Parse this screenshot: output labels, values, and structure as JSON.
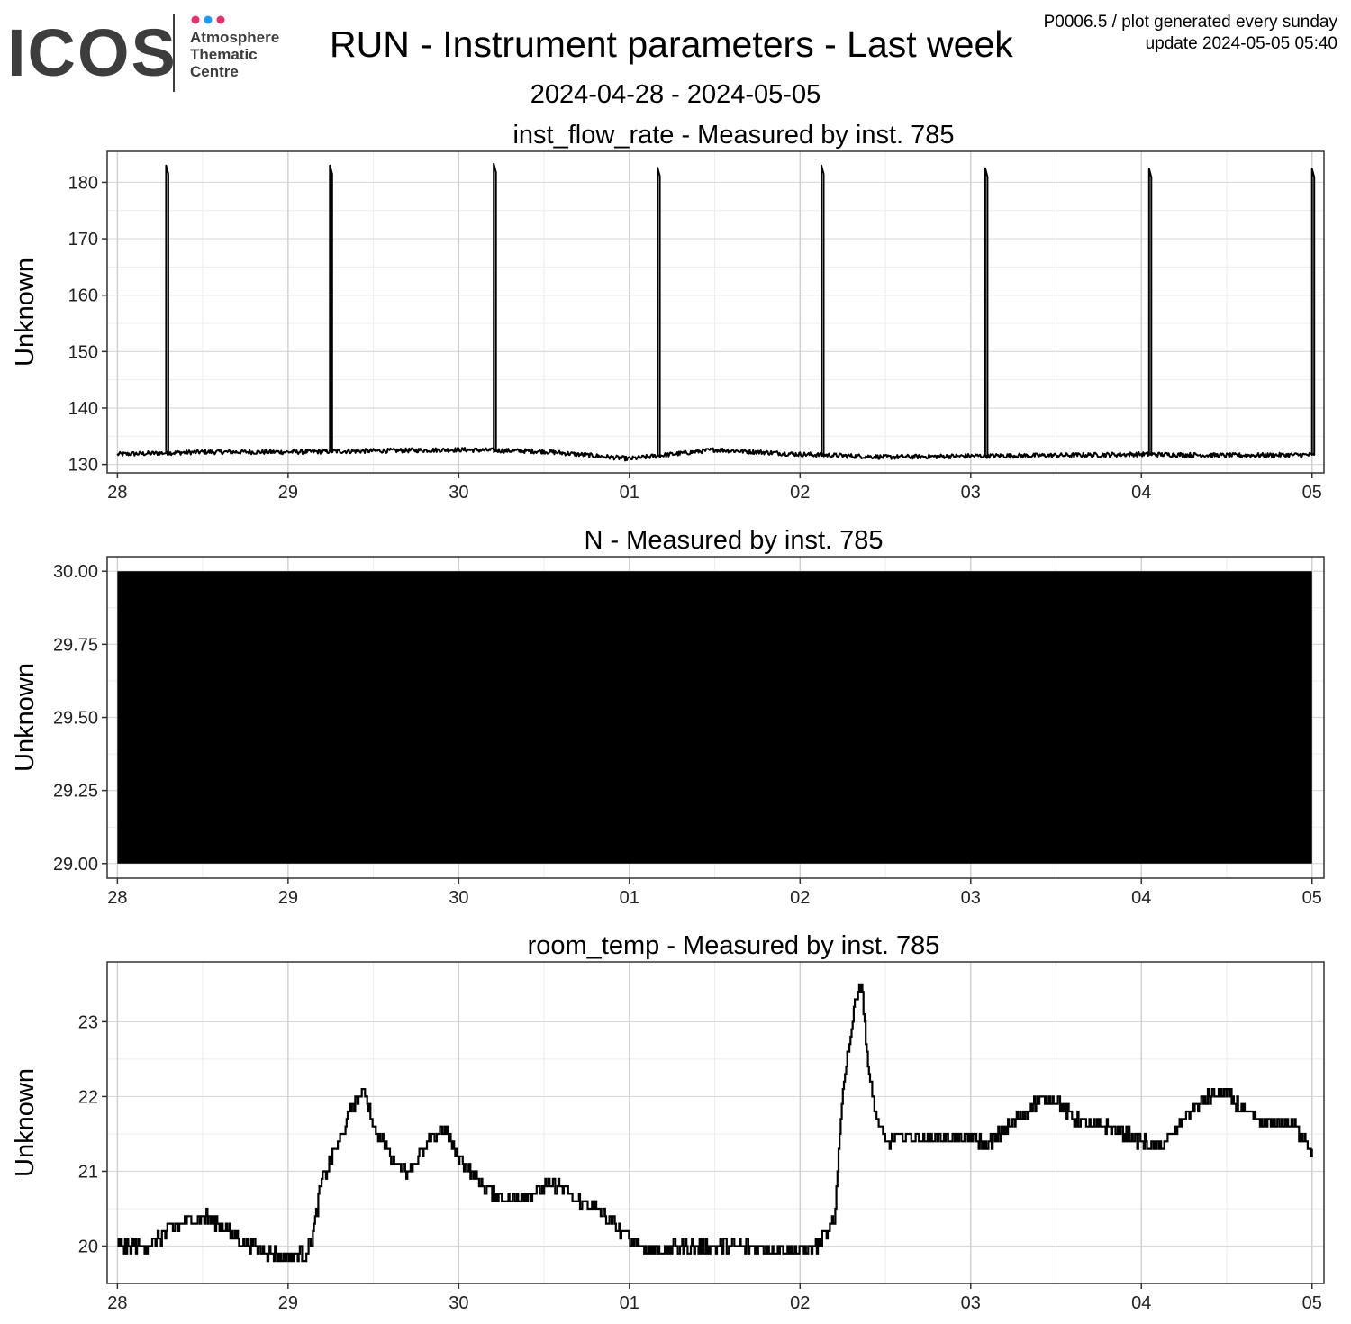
{
  "header": {
    "logo": {
      "wordmark": "ICOS",
      "line1": "Atmosphere",
      "line2": "Thematic",
      "line3": "Centre",
      "dot_colors": [
        "#e4306c",
        "#1d9bf0",
        "#e4306c"
      ],
      "wordmark_color": "#3d3d3d"
    },
    "title": "RUN - Instrument parameters - Last week",
    "date_range": "2024-04-28 - 2024-05-05",
    "meta_line1": "P0006.5 / plot generated every sunday",
    "meta_line2": "update  2024-05-05 05:40"
  },
  "chart_data": [
    {
      "type": "line",
      "title": "inst_flow_rate - Measured by inst. 785",
      "ylabel": "Unknown",
      "ylim": [
        128.5,
        185.5
      ],
      "yticks": [
        130,
        140,
        150,
        160,
        170,
        180
      ],
      "ytick_labels": [
        "130",
        "140",
        "150",
        "160",
        "170",
        "180"
      ],
      "xlim_days": [
        -0.06,
        7.07
      ],
      "x_tick_labels": [
        "28",
        "29",
        "30",
        "01",
        "02",
        "03",
        "04",
        "05"
      ],
      "grid": true,
      "series_color": "#000000",
      "baseline": {
        "x": [
          0,
          0.5,
          1,
          1.5,
          2,
          2.5,
          3,
          3.5,
          4,
          4.5,
          5,
          5.5,
          6,
          6.5,
          7
        ],
        "values": [
          131.8,
          132.2,
          132.2,
          132.4,
          132.6,
          132.3,
          131.0,
          132.6,
          131.8,
          131.3,
          131.5,
          131.6,
          131.8,
          131.6,
          131.7
        ]
      },
      "spikes": [
        {
          "x": 0.285,
          "peak": 183
        },
        {
          "x": 1.245,
          "peak": 183
        },
        {
          "x": 2.205,
          "peak": 183.3
        },
        {
          "x": 3.165,
          "peak": 182.6
        },
        {
          "x": 4.125,
          "peak": 183
        },
        {
          "x": 5.085,
          "peak": 182.5
        },
        {
          "x": 6.045,
          "peak": 182.4
        },
        {
          "x": 7.0,
          "peak": 182.4
        }
      ],
      "noise": 0.4
    },
    {
      "type": "area",
      "title": "N - Measured by inst. 785",
      "ylabel": "Unknown",
      "ylim": [
        28.95,
        30.05
      ],
      "yticks": [
        29.0,
        29.25,
        29.5,
        29.75,
        30.0
      ],
      "ytick_labels": [
        "29.00",
        "29.25",
        "29.50",
        "29.75",
        "30.00"
      ],
      "xlim_days": [
        -0.06,
        7.07
      ],
      "x_tick_labels": [
        "28",
        "29",
        "30",
        "01",
        "02",
        "03",
        "04",
        "05"
      ],
      "grid": true,
      "series_color": "#000000",
      "band": {
        "x_start": 0,
        "x_end": 7.0,
        "low": 29.0,
        "high": 30.0
      }
    },
    {
      "type": "line",
      "title": "room_temp - Measured by inst. 785",
      "ylabel": "Unknown",
      "ylim": [
        19.5,
        23.8
      ],
      "yticks": [
        20,
        21,
        22,
        23
      ],
      "ytick_labels": [
        "20",
        "21",
        "22",
        "23"
      ],
      "xlim_days": [
        -0.06,
        7.07
      ],
      "x_tick_labels": [
        "28",
        "29",
        "30",
        "01",
        "02",
        "03",
        "04",
        "05"
      ],
      "grid": true,
      "series_color": "#000000",
      "x": [
        0,
        0.1,
        0.2,
        0.3,
        0.4,
        0.5,
        0.6,
        0.7,
        0.8,
        0.9,
        1.0,
        1.1,
        1.14,
        1.2,
        1.3,
        1.38,
        1.45,
        1.5,
        1.6,
        1.7,
        1.8,
        1.9,
        2.0,
        2.1,
        2.2,
        2.3,
        2.4,
        2.5,
        2.6,
        2.7,
        2.8,
        2.9,
        3.0,
        3.1,
        3.2,
        3.3,
        3.5,
        3.7,
        3.9,
        4.0,
        4.1,
        4.2,
        4.23,
        4.26,
        4.3,
        4.33,
        4.36,
        4.4,
        4.45,
        4.5,
        4.6,
        4.8,
        5.0,
        5.1,
        5.2,
        5.3,
        5.4,
        5.5,
        5.6,
        5.7,
        5.8,
        5.9,
        6.0,
        6.1,
        6.2,
        6.3,
        6.4,
        6.5,
        6.6,
        6.7,
        6.8,
        6.9,
        7.0
      ],
      "values": [
        20.0,
        20.0,
        20.0,
        20.2,
        20.35,
        20.4,
        20.3,
        20.1,
        20.0,
        19.9,
        19.85,
        19.9,
        20.1,
        20.9,
        21.4,
        21.9,
        22.1,
        21.6,
        21.2,
        21.0,
        21.3,
        21.6,
        21.2,
        20.9,
        20.7,
        20.6,
        20.7,
        20.8,
        20.8,
        20.6,
        20.5,
        20.3,
        20.1,
        19.95,
        19.95,
        20.0,
        20.0,
        20.0,
        19.95,
        19.95,
        20.0,
        20.3,
        21.5,
        22.3,
        22.9,
        23.4,
        23.5,
        22.3,
        21.7,
        21.4,
        21.45,
        21.45,
        21.45,
        21.35,
        21.55,
        21.75,
        21.95,
        21.95,
        21.7,
        21.6,
        21.6,
        21.5,
        21.4,
        21.3,
        21.55,
        21.85,
        22.0,
        22.05,
        21.8,
        21.65,
        21.65,
        21.6,
        21.3
      ]
    }
  ]
}
